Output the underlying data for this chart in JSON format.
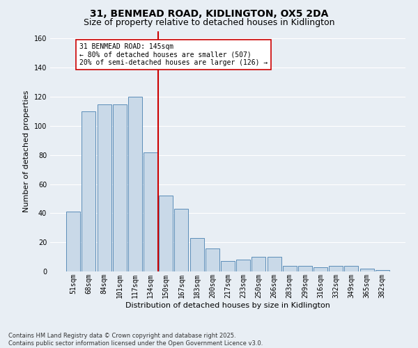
{
  "title_line1": "31, BENMEAD ROAD, KIDLINGTON, OX5 2DA",
  "title_line2": "Size of property relative to detached houses in Kidlington",
  "xlabel": "Distribution of detached houses by size in Kidlington",
  "ylabel": "Number of detached properties",
  "categories": [
    "51sqm",
    "68sqm",
    "84sqm",
    "101sqm",
    "117sqm",
    "134sqm",
    "150sqm",
    "167sqm",
    "183sqm",
    "200sqm",
    "217sqm",
    "233sqm",
    "250sqm",
    "266sqm",
    "283sqm",
    "299sqm",
    "316sqm",
    "332sqm",
    "349sqm",
    "365sqm",
    "382sqm"
  ],
  "values": [
    41,
    110,
    115,
    115,
    120,
    82,
    52,
    43,
    23,
    16,
    7,
    8,
    10,
    10,
    4,
    4,
    3,
    4,
    4,
    2,
    1
  ],
  "bar_color": "#c9d9e8",
  "bar_edge_color": "#5b8db8",
  "vline_color": "#cc0000",
  "annotation_text": "31 BENMEAD ROAD: 145sqm\n← 80% of detached houses are smaller (507)\n20% of semi-detached houses are larger (126) →",
  "annotation_box_color": "#ffffff",
  "annotation_box_edge": "#cc0000",
  "ylim": [
    0,
    165
  ],
  "footnote": "Contains HM Land Registry data © Crown copyright and database right 2025.\nContains public sector information licensed under the Open Government Licence v3.0.",
  "background_color": "#e8eef4",
  "plot_background": "#e8eef4",
  "grid_color": "#ffffff",
  "title_fontsize": 10,
  "subtitle_fontsize": 9,
  "label_fontsize": 8,
  "tick_fontsize": 7,
  "footnote_fontsize": 6,
  "annotation_fontsize": 7
}
